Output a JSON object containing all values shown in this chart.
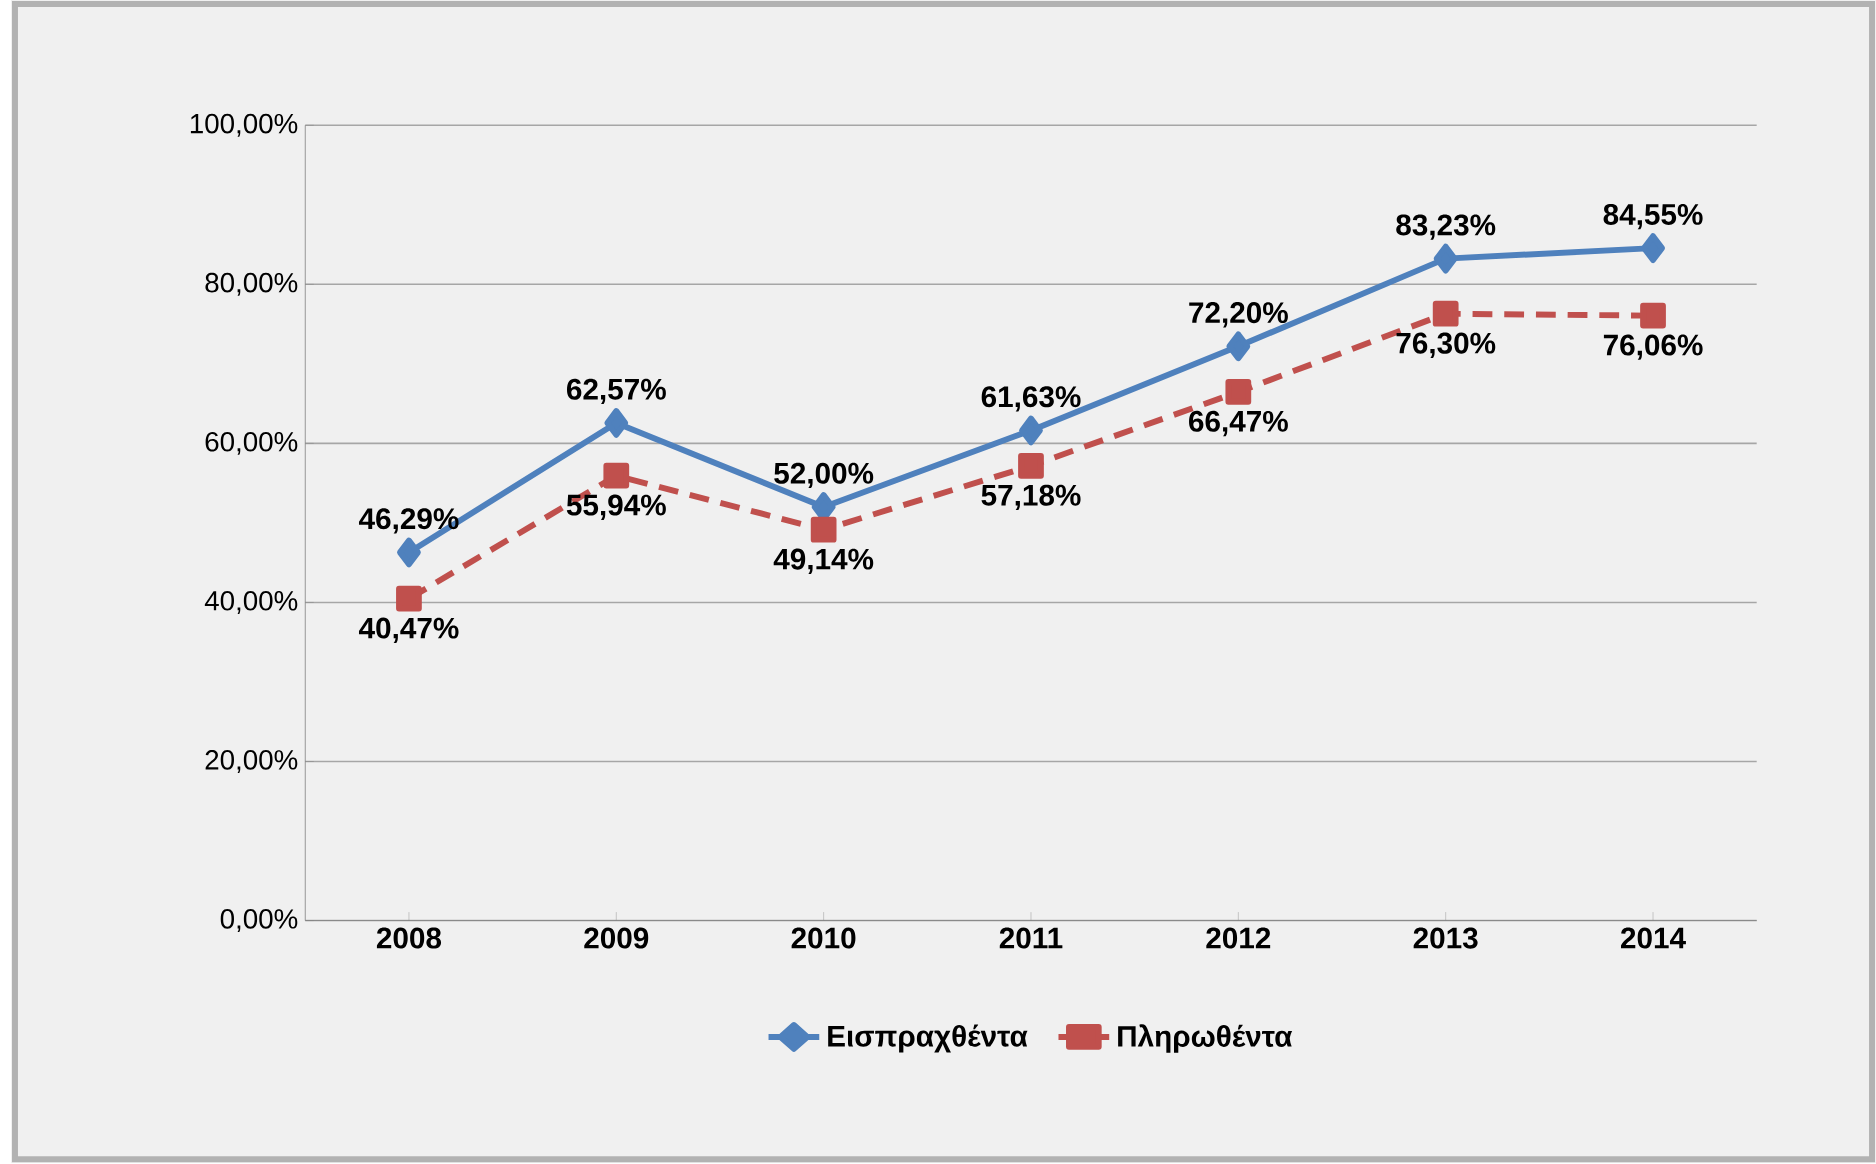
{
  "chart_data": {
    "type": "line",
    "categories": [
      "2008",
      "2009",
      "2010",
      "2011",
      "2012",
      "2013",
      "2014"
    ],
    "series": [
      {
        "name": "Εισπραχθέντα",
        "color": "#4f81bd",
        "marker": "diamond",
        "line_style": "solid",
        "values": [
          46.29,
          62.57,
          52.0,
          61.63,
          72.2,
          83.23,
          84.55
        ],
        "value_labels": [
          "46,29%",
          "62,57%",
          "52,00%",
          "61,63%",
          "72,20%",
          "83,23%",
          "84,55%"
        ]
      },
      {
        "name": "Πληρωθέντα",
        "color": "#c0504d",
        "marker": "square",
        "line_style": "dashed",
        "values": [
          40.47,
          55.94,
          49.14,
          57.18,
          66.47,
          76.3,
          76.06
        ],
        "value_labels": [
          "40,47%",
          "55,94%",
          "49,14%",
          "57,18%",
          "66,47%",
          "76,30%",
          "76,06%"
        ]
      }
    ],
    "ylim": [
      0,
      100
    ],
    "yticks": [
      {
        "value": 0,
        "label": "0,00%"
      },
      {
        "value": 20,
        "label": "20,00%"
      },
      {
        "value": 40,
        "label": "40,00%"
      },
      {
        "value": 60,
        "label": "60,00%"
      },
      {
        "value": 80,
        "label": "80,00%"
      },
      {
        "value": 100,
        "label": "100,00%"
      }
    ],
    "grid": "y",
    "legend": "bottom"
  }
}
